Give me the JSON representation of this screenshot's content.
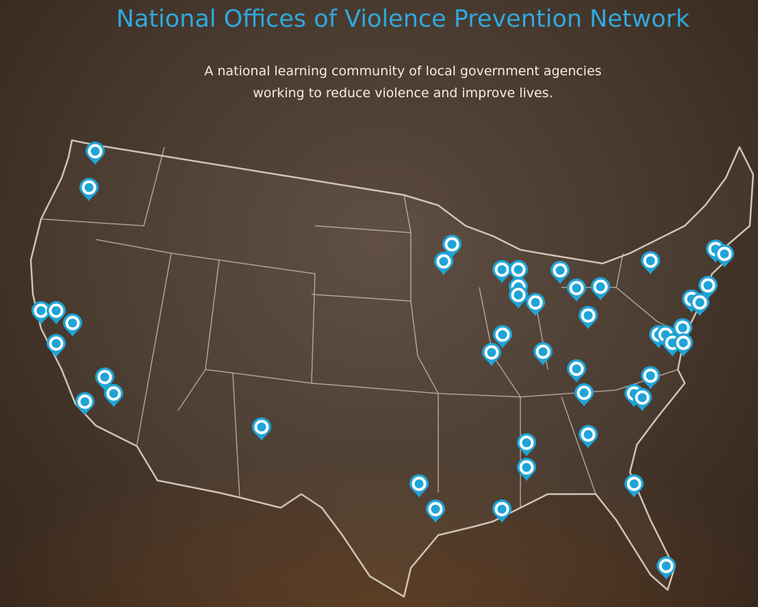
{
  "header": {
    "title": "National Offices of Violence Prevention Network",
    "subtitle": [
      "A national learning community of local government agencies",
      "working to reduce violence and improve lives."
    ]
  }
}
